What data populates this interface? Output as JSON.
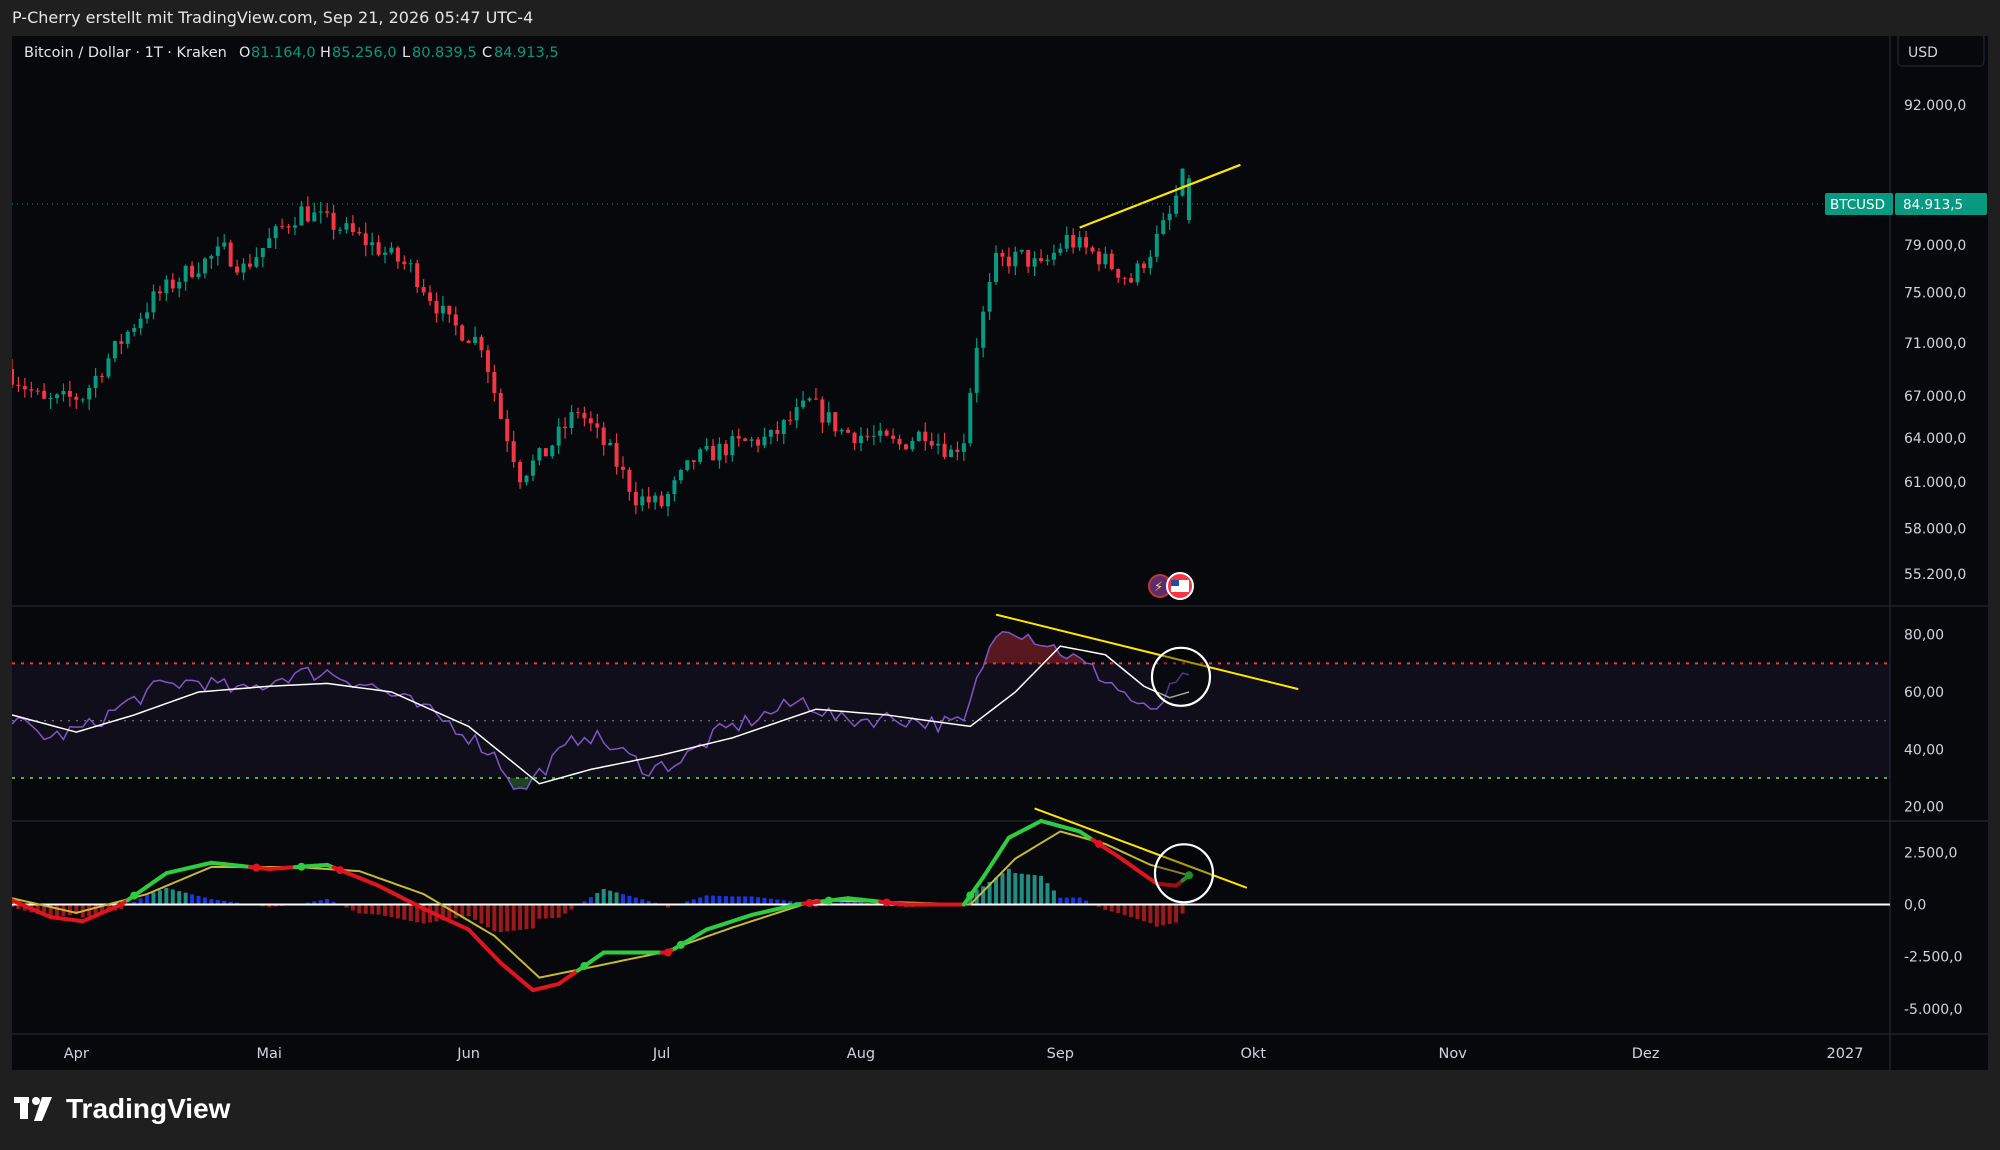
{
  "header": {
    "attribution": "P-Cherry erstellt mit TradingView.com, Sep 21, 2026 05:47 UTC-4"
  },
  "legend": {
    "symbol": "Bitcoin / Dollar · 1T · Kraken",
    "o_label": "O",
    "o_value": "81.164,0",
    "h_label": "H",
    "h_value": "85.256,0",
    "l_label": "L",
    "l_value": "80.839,5",
    "c_label": "C",
    "c_value": "84.913,5"
  },
  "currency_button": "USD",
  "price_tag": {
    "symbol": "BTCUSD",
    "value": "84.913,5"
  },
  "footer": {
    "brand": "TradingView"
  },
  "colors": {
    "up": "#089981",
    "down": "#f23645",
    "accent": "#ffe600",
    "rsi": "#7e57c2"
  },
  "chart_data": [
    {
      "type": "candlestick",
      "title": "Bitcoin / Dollar · 1T · Kraken",
      "y_scale": "log",
      "ylim": [
        54000,
        96000
      ],
      "ytick_labels": [
        "92.000,0",
        "79.000,0",
        "75.000,0",
        "71.000,0",
        "67.000,0",
        "64.000,0",
        "61.000,0",
        "58.000,0",
        "55.200,0"
      ],
      "ytick_values": [
        92000,
        79000,
        75000,
        71000,
        67000,
        64000,
        61000,
        58000,
        55200
      ],
      "x_start": "2026-03-22",
      "x_end": "2027-01-08",
      "xtick_labels": [
        "Apr",
        "Mai",
        "Jun",
        "Jul",
        "Aug",
        "Sep",
        "Okt",
        "Nov",
        "Dez",
        "2027"
      ],
      "xtick_dates": [
        "2026-04-01",
        "2026-05-01",
        "2026-06-01",
        "2026-07-01",
        "2026-08-01",
        "2026-09-01",
        "2026-10-01",
        "2026-11-01",
        "2026-12-01",
        "2027-01-01"
      ],
      "close_anchors": [
        [
          "2026-03-22",
          69000
        ],
        [
          "2026-03-28",
          66500
        ],
        [
          "2026-04-03",
          67000
        ],
        [
          "2026-04-08",
          70500
        ],
        [
          "2026-04-14",
          74500
        ],
        [
          "2026-04-20",
          77000
        ],
        [
          "2026-04-25",
          78500
        ],
        [
          "2026-04-28",
          77000
        ],
        [
          "2026-05-04",
          80500
        ],
        [
          "2026-05-07",
          82000
        ],
        [
          "2026-05-13",
          80500
        ],
        [
          "2026-05-18",
          79000
        ],
        [
          "2026-05-24",
          77000
        ],
        [
          "2026-05-30",
          72500
        ],
        [
          "2026-06-04",
          71000
        ],
        [
          "2026-06-07",
          65500
        ],
        [
          "2026-06-10",
          61500
        ],
        [
          "2026-06-14",
          63000
        ],
        [
          "2026-06-19",
          66000
        ],
        [
          "2026-06-24",
          63000
        ],
        [
          "2026-06-28",
          60000
        ],
        [
          "2026-07-02",
          59500
        ],
        [
          "2026-07-07",
          62500
        ],
        [
          "2026-07-13",
          63500
        ],
        [
          "2026-07-19",
          64000
        ],
        [
          "2026-07-25",
          66500
        ],
        [
          "2026-07-30",
          64500
        ],
        [
          "2026-08-04",
          64000
        ],
        [
          "2026-08-08",
          63500
        ],
        [
          "2026-08-12",
          64500
        ],
        [
          "2026-08-16",
          63000
        ],
        [
          "2026-08-18",
          64000
        ],
        [
          "2026-08-20",
          71000
        ],
        [
          "2026-08-23",
          77500
        ],
        [
          "2026-08-27",
          78000
        ],
        [
          "2026-08-30",
          77000
        ],
        [
          "2026-09-03",
          79500
        ],
        [
          "2026-09-08",
          78000
        ],
        [
          "2026-09-13",
          76000
        ],
        [
          "2026-09-16",
          78500
        ],
        [
          "2026-09-19",
          81500
        ],
        [
          "2026-09-21",
          84913.5
        ]
      ],
      "last": {
        "date": "2026-09-21",
        "open": 81164,
        "high": 85256,
        "low": 80839.5,
        "close": 84913.5
      },
      "trendline": [
        [
          "2026-09-04",
          80500
        ],
        [
          "2026-09-29",
          86200
        ]
      ]
    },
    {
      "type": "line",
      "name": "RSI",
      "ylim": [
        15,
        90
      ],
      "ytick_labels": [
        "80,00",
        "60,00",
        "40,00",
        "20,00"
      ],
      "ytick_values": [
        80,
        60,
        40,
        20
      ],
      "levels": [
        70,
        50,
        30
      ],
      "rsi_anchors": [
        [
          "2026-03-22",
          50
        ],
        [
          "2026-03-28",
          44
        ],
        [
          "2026-04-03",
          48
        ],
        [
          "2026-04-08",
          55
        ],
        [
          "2026-04-14",
          62
        ],
        [
          "2026-04-20",
          64
        ],
        [
          "2026-04-27",
          60
        ],
        [
          "2026-05-04",
          66
        ],
        [
          "2026-05-10",
          67
        ],
        [
          "2026-05-17",
          62
        ],
        [
          "2026-05-24",
          55
        ],
        [
          "2026-05-30",
          48
        ],
        [
          "2026-06-05",
          38
        ],
        [
          "2026-06-09",
          25
        ],
        [
          "2026-06-13",
          34
        ],
        [
          "2026-06-19",
          46
        ],
        [
          "2026-06-24",
          40
        ],
        [
          "2026-06-29",
          33
        ],
        [
          "2026-07-04",
          36
        ],
        [
          "2026-07-10",
          46
        ],
        [
          "2026-07-17",
          52
        ],
        [
          "2026-07-23",
          57
        ],
        [
          "2026-07-29",
          50
        ],
        [
          "2026-08-06",
          51
        ],
        [
          "2026-08-13",
          49
        ],
        [
          "2026-08-17",
          49
        ],
        [
          "2026-08-20",
          70
        ],
        [
          "2026-08-23",
          84
        ],
        [
          "2026-08-28",
          79
        ],
        [
          "2026-09-03",
          72
        ],
        [
          "2026-09-09",
          63
        ],
        [
          "2026-09-15",
          52
        ],
        [
          "2026-09-18",
          60
        ],
        [
          "2026-09-21",
          66
        ]
      ],
      "ma_anchors": [
        [
          "2026-03-22",
          52
        ],
        [
          "2026-04-01",
          46
        ],
        [
          "2026-04-10",
          52
        ],
        [
          "2026-04-20",
          60
        ],
        [
          "2026-05-01",
          62
        ],
        [
          "2026-05-10",
          63
        ],
        [
          "2026-05-20",
          60
        ],
        [
          "2026-06-01",
          48
        ],
        [
          "2026-06-12",
          28
        ],
        [
          "2026-06-20",
          33
        ],
        [
          "2026-07-01",
          38
        ],
        [
          "2026-07-12",
          44
        ],
        [
          "2026-07-25",
          54
        ],
        [
          "2026-08-05",
          52
        ],
        [
          "2026-08-18",
          48
        ],
        [
          "2026-08-25",
          60
        ],
        [
          "2026-09-01",
          76
        ],
        [
          "2026-09-08",
          73
        ],
        [
          "2026-09-14",
          62
        ],
        [
          "2026-09-18",
          58
        ],
        [
          "2026-09-21",
          60
        ]
      ],
      "trendline": [
        [
          "2026-08-22",
          87
        ],
        [
          "2026-10-08",
          61
        ]
      ]
    },
    {
      "type": "line",
      "name": "MACD",
      "ylim": [
        -6200,
        4000
      ],
      "ytick_labels": [
        "2.500,0",
        "0,0",
        "-2.500,0",
        "-5.000,0"
      ],
      "ytick_values": [
        2500,
        0,
        -2500,
        -5000
      ],
      "macd_anchors": [
        [
          "2026-03-22",
          200
        ],
        [
          "2026-03-28",
          -600
        ],
        [
          "2026-04-02",
          -800
        ],
        [
          "2026-04-08",
          0
        ],
        [
          "2026-04-15",
          1500
        ],
        [
          "2026-04-22",
          2000
        ],
        [
          "2026-05-01",
          1700
        ],
        [
          "2026-05-10",
          1900
        ],
        [
          "2026-05-18",
          900
        ],
        [
          "2026-05-25",
          -200
        ],
        [
          "2026-06-01",
          -1200
        ],
        [
          "2026-06-06",
          -2800
        ],
        [
          "2026-06-11",
          -4100
        ],
        [
          "2026-06-15",
          -3800
        ],
        [
          "2026-06-22",
          -2300
        ],
        [
          "2026-06-28",
          -2300
        ],
        [
          "2026-07-02",
          -2300
        ],
        [
          "2026-07-08",
          -1200
        ],
        [
          "2026-07-15",
          -500
        ],
        [
          "2026-07-22",
          0
        ],
        [
          "2026-07-30",
          300
        ],
        [
          "2026-08-08",
          0
        ],
        [
          "2026-08-17",
          0
        ],
        [
          "2026-08-20",
          1300
        ],
        [
          "2026-08-24",
          3200
        ],
        [
          "2026-08-29",
          4000
        ],
        [
          "2026-09-04",
          3500
        ],
        [
          "2026-09-10",
          2300
        ],
        [
          "2026-09-16",
          1000
        ],
        [
          "2026-09-19",
          900
        ],
        [
          "2026-09-21",
          1400
        ]
      ],
      "signal_anchors": [
        [
          "2026-03-22",
          300
        ],
        [
          "2026-04-01",
          -400
        ],
        [
          "2026-04-12",
          500
        ],
        [
          "2026-04-22",
          1800
        ],
        [
          "2026-05-05",
          1800
        ],
        [
          "2026-05-15",
          1600
        ],
        [
          "2026-05-25",
          500
        ],
        [
          "2026-06-05",
          -1500
        ],
        [
          "2026-06-12",
          -3500
        ],
        [
          "2026-06-20",
          -3000
        ],
        [
          "2026-07-01",
          -2300
        ],
        [
          "2026-07-12",
          -1100
        ],
        [
          "2026-07-25",
          200
        ],
        [
          "2026-08-08",
          100
        ],
        [
          "2026-08-18",
          0
        ],
        [
          "2026-08-25",
          2200
        ],
        [
          "2026-09-01",
          3500
        ],
        [
          "2026-09-08",
          2900
        ],
        [
          "2026-09-15",
          1900
        ],
        [
          "2026-09-21",
          1400
        ]
      ],
      "trendline": [
        [
          "2026-08-28",
          4600
        ],
        [
          "2026-09-30",
          800
        ]
      ]
    }
  ]
}
